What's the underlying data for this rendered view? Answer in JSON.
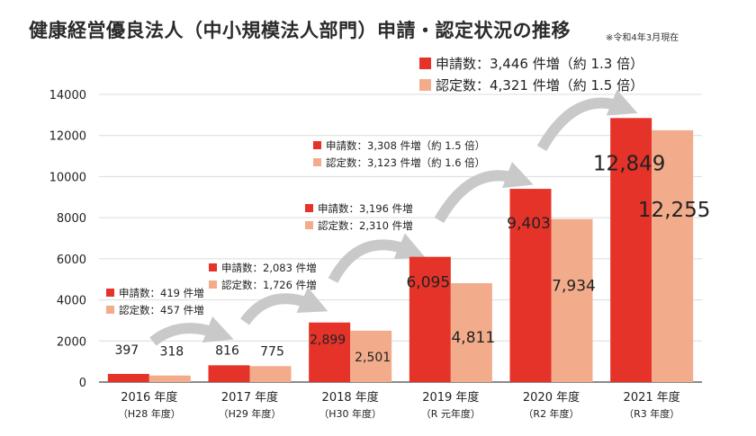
{
  "title": "健康経営優良法人（中小規模法人部門）申請・認定状況の推移",
  "note": "※令和4年3月現在",
  "colors": {
    "applications": "#e5332a",
    "certifications": "#f2ac8b",
    "arrow": "#c9c9c9",
    "grid": "#dcdcdc"
  },
  "annotations": [
    {
      "lines": [
        "申請数：419 件増",
        "認定数：457 件増"
      ]
    },
    {
      "lines": [
        "申請数：2,083 件増",
        "認定数：1,726 件増"
      ]
    },
    {
      "lines": [
        "申請数：3,196 件増",
        "認定数：2,310 件増"
      ]
    },
    {
      "lines": [
        "申請数：3,308 件増（約 1.5 倍）",
        "認定数：3,123 件増（約 1.6 倍）"
      ]
    },
    {
      "lines": [
        "申請数：3,446 件増（約 1.3 倍）",
        "認定数：4,321 件増（約 1.5 倍）"
      ]
    }
  ],
  "chart_data": {
    "type": "bar",
    "categories": [
      "2016 年度",
      "2017 年度",
      "2018 年度",
      "2019 年度",
      "2020 年度",
      "2021 年度"
    ],
    "sublabels": [
      "（H28 年度）",
      "（H29 年度）",
      "（H30 年度）",
      "（R 元年度）",
      "（R2 年度）",
      "（R3 年度）"
    ],
    "series": [
      {
        "name": "申請数",
        "values": [
          397,
          816,
          2899,
          6095,
          9403,
          12849
        ],
        "labels": [
          "397",
          "816",
          "2,899",
          "6,095",
          "9,403",
          "12,849"
        ]
      },
      {
        "name": "認定数",
        "values": [
          318,
          775,
          2501,
          4811,
          7934,
          12255
        ],
        "labels": [
          "318",
          "775",
          "2,501",
          "4,811",
          "7,934",
          "12,255"
        ]
      }
    ],
    "yticks": [
      "0",
      "2000",
      "4000",
      "6000",
      "8000",
      "10000",
      "12000",
      "14000"
    ],
    "ylim": [
      0,
      14000
    ],
    "grid": true
  }
}
